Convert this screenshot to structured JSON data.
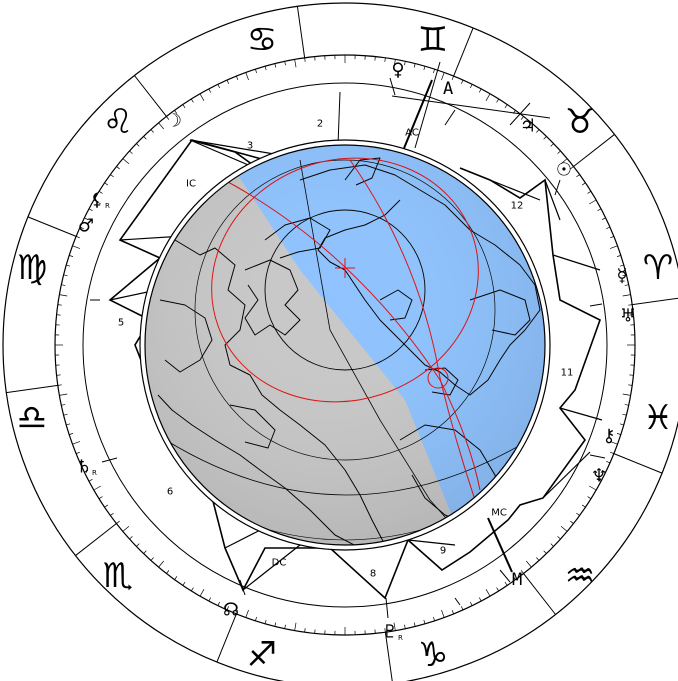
{
  "zodiac_signs": [
    {
      "name": "cancer",
      "glyph": "♋"
    },
    {
      "name": "gemini",
      "glyph": "♊"
    },
    {
      "name": "taurus",
      "glyph": "♉"
    },
    {
      "name": "aries",
      "glyph": "♈"
    },
    {
      "name": "pisces",
      "glyph": "♓"
    },
    {
      "name": "aquarius",
      "glyph": "♒"
    },
    {
      "name": "capricorn",
      "glyph": "♑"
    },
    {
      "name": "sagittarius",
      "glyph": "♐"
    },
    {
      "name": "scorpio",
      "glyph": "♏"
    },
    {
      "name": "libra",
      "glyph": "♎"
    },
    {
      "name": "virgo",
      "glyph": "♍"
    },
    {
      "name": "leo",
      "glyph": "♌"
    }
  ],
  "planets": [
    {
      "name": "moon",
      "glyph": "☽",
      "retro": ""
    },
    {
      "name": "venus",
      "glyph": "♀",
      "retro": ""
    },
    {
      "name": "jupiter",
      "glyph": "♃",
      "retro": ""
    },
    {
      "name": "sun",
      "glyph": "☉",
      "retro": ""
    },
    {
      "name": "mercury",
      "glyph": "☿",
      "retro": ""
    },
    {
      "name": "uranus",
      "glyph": "♅",
      "retro": ""
    },
    {
      "name": "chiron",
      "glyph": "⚷",
      "retro": ""
    },
    {
      "name": "neptune",
      "glyph": "♆",
      "retro": ""
    },
    {
      "name": "pluto",
      "glyph": "♇",
      "retro": "R"
    },
    {
      "name": "north-node",
      "glyph": "☊",
      "retro": ""
    },
    {
      "name": "saturn",
      "glyph": "♄",
      "retro": "R"
    },
    {
      "name": "mars",
      "glyph": "♂",
      "retro": ""
    },
    {
      "name": "lilith",
      "glyph": "⚸",
      "retro": "R"
    }
  ],
  "houses": [
    "2",
    "3",
    "IC",
    "5",
    "6",
    "DC",
    "8",
    "9",
    "MC",
    "11",
    "12",
    "AC"
  ],
  "angles": {
    "asc": "A",
    "mc": "M"
  },
  "colors": {
    "day": "#8fc3ff",
    "night": "#c8c8c8",
    "line": "#000000",
    "red": "#e01010"
  }
}
